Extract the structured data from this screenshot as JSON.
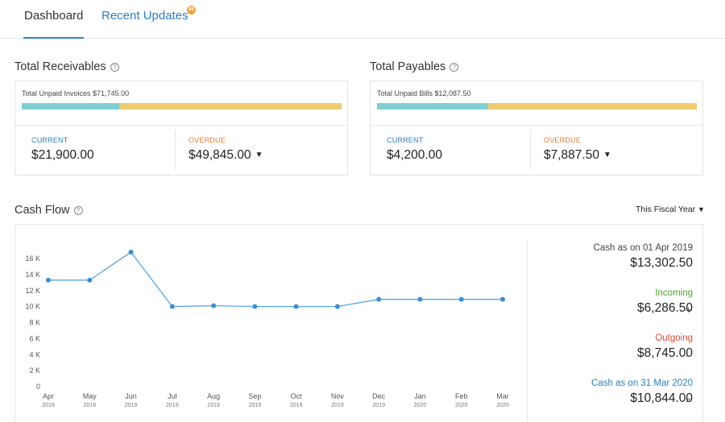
{
  "tabs": {
    "dashboard": "Dashboard",
    "recent_updates": "Recent Updates",
    "badge": "88"
  },
  "receivables": {
    "title": "Total Receivables",
    "unpaid_label": "Total Unpaid Invoices $71,745.00",
    "current_label": "CURRENT",
    "current_value": "$21,900.00",
    "overdue_label": "OVERDUE",
    "overdue_value": "$49,845.00",
    "current_fraction": 0.305
  },
  "payables": {
    "title": "Total Payables",
    "unpaid_label": "Total Unpaid Bills $12,087.50",
    "current_label": "CURRENT",
    "current_value": "$4,200.00",
    "overdue_label": "OVERDUE",
    "overdue_value": "$7,887.50",
    "current_fraction": 0.347
  },
  "cashflow": {
    "title": "Cash Flow",
    "period_selector": "This Fiscal Year",
    "opening_label": "Cash as on 01 Apr 2019",
    "opening_value": "$13,302.50",
    "incoming_label": "Incoming",
    "incoming_value": "$6,286.50",
    "incoming_op": "+",
    "outgoing_label": "Outgoing",
    "outgoing_value": "$8,745.00",
    "outgoing_op": "-",
    "closing_label": "Cash as on 31 Mar 2020",
    "closing_value": "$10,844.00",
    "closing_op": "="
  },
  "colors": {
    "line": "#5aa6dc",
    "point": "#3d8fd0",
    "bar_current": "#7ecfd2",
    "bar_overdue": "#eecd71"
  },
  "chart_data": {
    "type": "line",
    "x": [
      "Apr",
      "May",
      "Jun",
      "Jul",
      "Aug",
      "Sep",
      "Oct",
      "Nov",
      "Dec",
      "Jan",
      "Feb",
      "Mar"
    ],
    "x_years": [
      "2019",
      "2019",
      "2019",
      "2019",
      "2019",
      "2019",
      "2019",
      "2019",
      "2019",
      "2020",
      "2020",
      "2020"
    ],
    "y": [
      13300,
      13300,
      16800,
      10000,
      10100,
      10000,
      10000,
      10000,
      10900,
      10900,
      10900,
      10900
    ],
    "y_ticks": [
      0,
      2000,
      4000,
      6000,
      8000,
      10000,
      12000,
      14000,
      16000
    ],
    "y_tick_labels": [
      "0",
      "2 K",
      "4 K",
      "6 K",
      "8 K",
      "10 K",
      "12 K",
      "14 K",
      "16 K"
    ],
    "ylim": [
      0,
      16000
    ],
    "grid": false,
    "title": "",
    "xlabel": "",
    "ylabel": ""
  }
}
